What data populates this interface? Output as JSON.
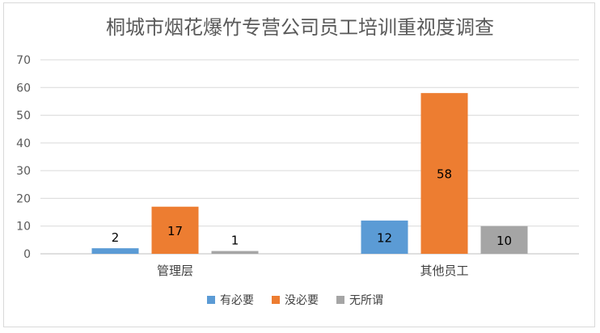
{
  "chart_data": {
    "type": "bar",
    "title": "桐城市烟花爆竹专营公司员工培训重视度调查",
    "categories": [
      "管理层",
      "其他员工"
    ],
    "series": [
      {
        "name": "有必要",
        "values": [
          2,
          12
        ],
        "color": "#5b9bd5"
      },
      {
        "name": "没必要",
        "values": [
          17,
          58
        ],
        "color": "#ed7d31"
      },
      {
        "name": "无所谓",
        "values": [
          1,
          10
        ],
        "color": "#a5a5a5"
      }
    ],
    "y_ticks": [
      0,
      10,
      20,
      30,
      40,
      50,
      60,
      70
    ],
    "ylim": [
      0,
      70
    ],
    "grid": true,
    "legend_position": "bottom",
    "data_labels": true
  }
}
